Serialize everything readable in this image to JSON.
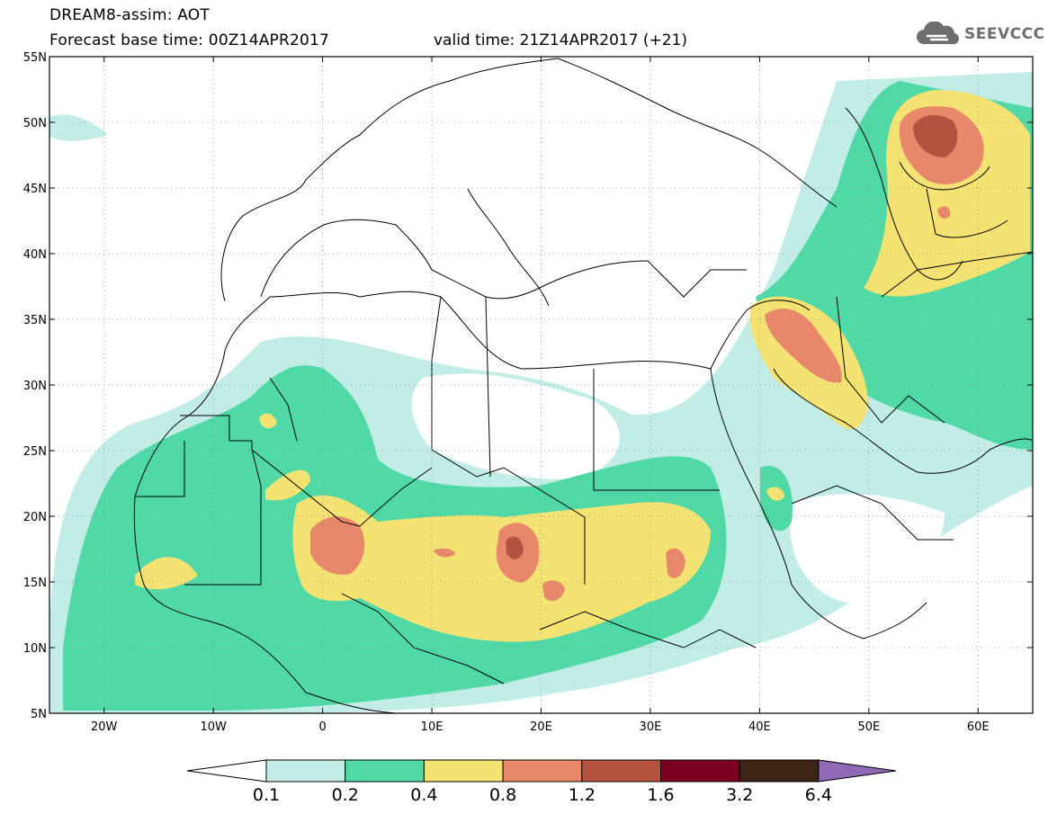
{
  "title_line1": "DREAM8-assim: AOT",
  "title_line2": "Forecast base time: 00Z14APR2017",
  "valid_time": "valid time: 21Z14APR2017 (+21)",
  "logo_text": "SEEVCCC",
  "map": {
    "lat_labels": [
      "55N",
      "50N",
      "45N",
      "40N",
      "35N",
      "30N",
      "25N",
      "20N",
      "15N",
      "10N",
      "5N"
    ],
    "lon_labels": [
      "20W",
      "10W",
      "0",
      "10E",
      "20E",
      "30E",
      "40E",
      "50E",
      "60E"
    ],
    "lon_range": [
      -25,
      65
    ],
    "lat_range": [
      5,
      55
    ],
    "grid": true
  },
  "legend": {
    "ticks": [
      "0.1",
      "0.2",
      "0.4",
      "0.8",
      "1.2",
      "1.6",
      "3.2",
      "6.4"
    ],
    "colors": [
      "#ffffff",
      "#c2ede7",
      "#50d8a6",
      "#f4e272",
      "#e8886a",
      "#b4513f",
      "#7b0022",
      "#3e2414",
      "#8d6ab3"
    ]
  }
}
